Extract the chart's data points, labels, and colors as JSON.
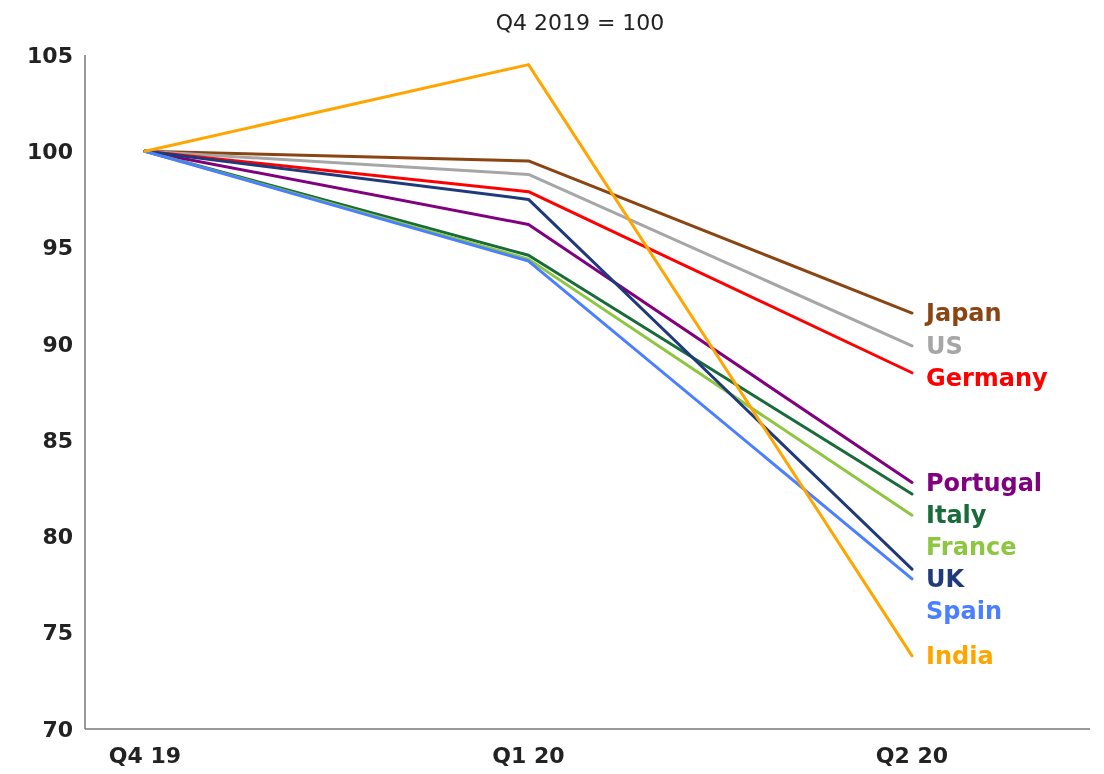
{
  "chart_data": {
    "type": "line",
    "title": "Q4 2019 = 100",
    "categories": [
      "Q4 19",
      "Q1 20",
      "Q2 20"
    ],
    "ylim": [
      70,
      105
    ],
    "yticks": [
      70,
      75,
      80,
      85,
      90,
      95,
      100,
      105
    ],
    "grid": false,
    "marker": "none",
    "line_style": "solid",
    "series": [
      {
        "name": "Japan",
        "color": "#8b4513",
        "values": [
          100,
          99.5,
          91.6
        ]
      },
      {
        "name": "US",
        "color": "#a6a6a6",
        "values": [
          100,
          98.8,
          89.9
        ]
      },
      {
        "name": "Germany",
        "color": "#ff0000",
        "values": [
          100,
          97.9,
          88.5
        ]
      },
      {
        "name": "Portugal",
        "color": "#800080",
        "values": [
          100,
          96.2,
          82.8
        ]
      },
      {
        "name": "Italy",
        "color": "#1a6b3a",
        "values": [
          100,
          94.6,
          82.2
        ]
      },
      {
        "name": "France",
        "color": "#8dc63f",
        "values": [
          100,
          94.4,
          81.1
        ]
      },
      {
        "name": "UK",
        "color": "#1f3a7a",
        "values": [
          100,
          97.5,
          78.3
        ]
      },
      {
        "name": "Spain",
        "color": "#4a7fff",
        "values": [
          100,
          94.3,
          77.8
        ]
      },
      {
        "name": "India",
        "color": "#ffa500",
        "values": [
          100,
          104.5,
          73.8
        ]
      }
    ]
  }
}
